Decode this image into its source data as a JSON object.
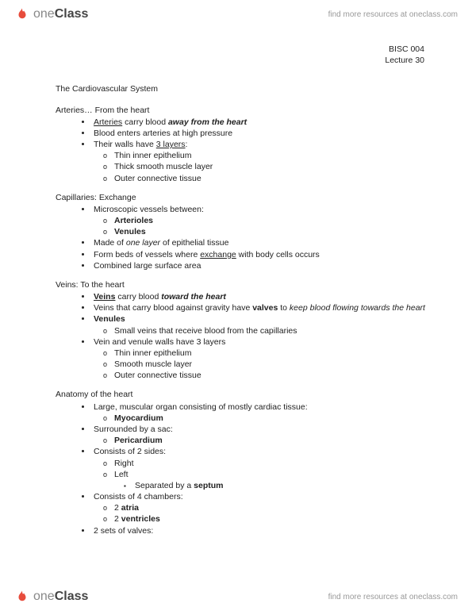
{
  "brand": {
    "name_part1": "one",
    "name_part2": "Class",
    "tagline": "find more resources at oneclass.com",
    "icon_color": "#e74c3c"
  },
  "course": {
    "code": "BISC 004",
    "lecture": "Lecture 30"
  },
  "title": "The Cardiovascular System",
  "sections": [
    {
      "head": "Arteries… From the heart",
      "items": [
        {
          "runs": [
            {
              "t": "Arteries",
              "cls": "u"
            },
            {
              "t": " carry blood "
            },
            {
              "t": "away from the heart",
              "cls": "bi"
            }
          ]
        },
        {
          "runs": [
            {
              "t": "Blood enters arteries at high pressure"
            }
          ]
        },
        {
          "runs": [
            {
              "t": "Their walls have "
            },
            {
              "t": "3 layers",
              "cls": "u"
            },
            {
              "t": ":"
            }
          ],
          "sub": [
            {
              "runs": [
                {
                  "t": "Thin inner epithelium"
                }
              ]
            },
            {
              "runs": [
                {
                  "t": "Thick smooth muscle layer"
                }
              ]
            },
            {
              "runs": [
                {
                  "t": "Outer connective tissue"
                }
              ]
            }
          ]
        }
      ]
    },
    {
      "head": "Capillaries: Exchange",
      "items": [
        {
          "runs": [
            {
              "t": "Microscopic vessels between:"
            }
          ],
          "sub": [
            {
              "runs": [
                {
                  "t": "Arterioles",
                  "cls": "b"
                }
              ]
            },
            {
              "runs": [
                {
                  "t": "Venules",
                  "cls": "b"
                }
              ]
            }
          ]
        },
        {
          "runs": [
            {
              "t": "Made of "
            },
            {
              "t": "one layer",
              "cls": "i"
            },
            {
              "t": " of epithelial tissue"
            }
          ]
        },
        {
          "runs": [
            {
              "t": "Form beds of vessels where "
            },
            {
              "t": "exchange",
              "cls": "u"
            },
            {
              "t": " with body cells occurs"
            }
          ]
        },
        {
          "runs": [
            {
              "t": "Combined large surface area"
            }
          ]
        }
      ]
    },
    {
      "head": "Veins: To the heart",
      "items": [
        {
          "runs": [
            {
              "t": "Veins",
              "cls": "b u"
            },
            {
              "t": " carry blood "
            },
            {
              "t": "toward the heart",
              "cls": "bi"
            }
          ]
        },
        {
          "runs": [
            {
              "t": "Veins that carry blood against gravity have "
            },
            {
              "t": "valves",
              "cls": "b"
            },
            {
              "t": " to "
            },
            {
              "t": "keep blood flowing towards the heart",
              "cls": "i"
            }
          ]
        },
        {
          "runs": [
            {
              "t": "Venules",
              "cls": "b"
            }
          ],
          "sub": [
            {
              "runs": [
                {
                  "t": "Small veins that receive blood from the capillaries"
                }
              ]
            }
          ]
        },
        {
          "runs": [
            {
              "t": "Vein and venule walls have 3 layers"
            }
          ],
          "sub": [
            {
              "runs": [
                {
                  "t": "Thin inner epithelium"
                }
              ]
            },
            {
              "runs": [
                {
                  "t": "Smooth muscle layer"
                }
              ]
            },
            {
              "runs": [
                {
                  "t": "Outer connective tissue"
                }
              ]
            }
          ]
        }
      ]
    },
    {
      "head": "Anatomy of the heart",
      "items": [
        {
          "runs": [
            {
              "t": "Large, muscular organ consisting of mostly cardiac tissue:"
            }
          ],
          "sub": [
            {
              "runs": [
                {
                  "t": "Myocardium",
                  "cls": "b"
                }
              ]
            }
          ]
        },
        {
          "runs": [
            {
              "t": "Surrounded by a sac:"
            }
          ],
          "sub": [
            {
              "runs": [
                {
                  "t": "Pericardium",
                  "cls": "b"
                }
              ]
            }
          ]
        },
        {
          "runs": [
            {
              "t": "Consists of 2 sides:"
            }
          ],
          "sub": [
            {
              "runs": [
                {
                  "t": "Right"
                }
              ]
            },
            {
              "runs": [
                {
                  "t": "Left"
                }
              ],
              "sub": [
                {
                  "runs": [
                    {
                      "t": "Separated by a "
                    },
                    {
                      "t": "septum",
                      "cls": "b"
                    }
                  ]
                }
              ]
            }
          ]
        },
        {
          "runs": [
            {
              "t": "Consists of 4 chambers:"
            }
          ],
          "sub": [
            {
              "runs": [
                {
                  "t": "2 "
                },
                {
                  "t": "atria",
                  "cls": "b"
                }
              ]
            },
            {
              "runs": [
                {
                  "t": "2 "
                },
                {
                  "t": "ventricles",
                  "cls": "b"
                }
              ]
            }
          ]
        },
        {
          "runs": [
            {
              "t": "2 sets of valves:"
            }
          ]
        }
      ]
    }
  ]
}
